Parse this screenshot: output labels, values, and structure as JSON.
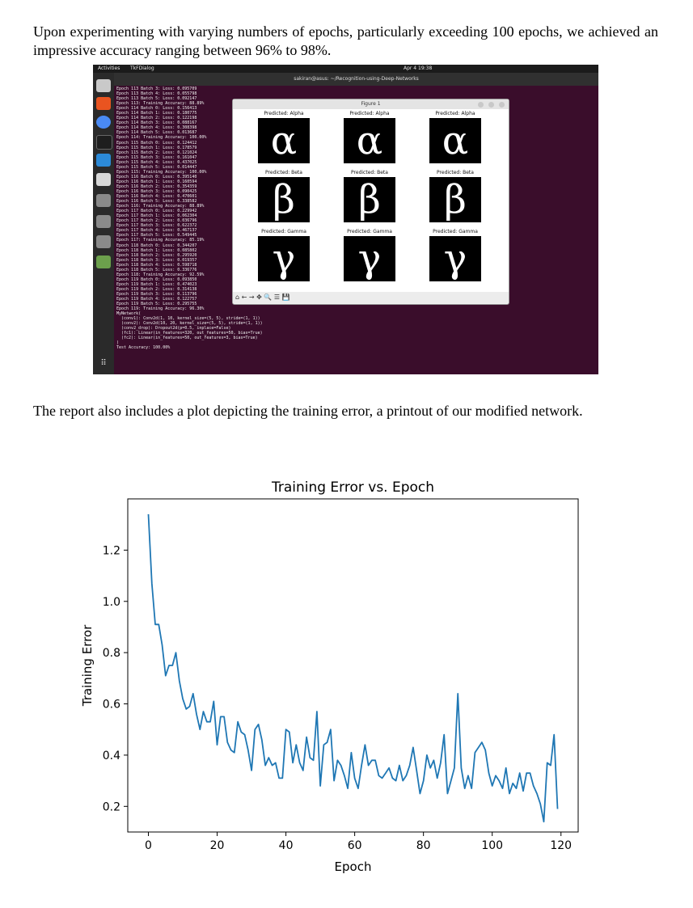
{
  "paragraphs": {
    "intro": "Upon experimenting with varying numbers of epochs, particularly exceeding 100 epochs, we achieved an impressive accuracy ranging between 96% to 98%.",
    "report": "The report also includes a plot depicting the training error, a printout of our modified network."
  },
  "screenshot": {
    "topbar": {
      "activities": "Activities",
      "app": "TkFDialog",
      "clock": "Apr 4  19:38"
    },
    "terminal_title": "sakiran@asus: ~/Recognition-using-Deep-Networks",
    "terminal_lines": [
      "Epoch 113 Batch 3: Loss: 0.095709",
      "Epoch 113 Batch 4: Loss: 0.055798",
      "Epoch 113 Batch 5: Loss: 0.092147",
      "Epoch 113: Training Accuracy: 88.89%",
      "Epoch 114 Batch 0: Loss: 0.156413",
      "Epoch 114 Batch 1: Loss: 0.180775",
      "Epoch 114 Batch 2: Loss: 0.122198",
      "Epoch 114 Batch 3: Loss: 0.088167",
      "Epoch 114 Batch 4: Loss: 0.308398",
      "Epoch 114 Batch 5: Loss: 0.013687",
      "Epoch 114: Training Accuracy: 100.00%",
      "Epoch 115 Batch 0: Loss: 0.124412",
      "Epoch 115 Batch 1: Loss: 0.178579",
      "Epoch 115 Batch 2: Loss: 0.121024",
      "Epoch 115 Batch 3: Loss: 0.161047",
      "Epoch 115 Batch 4: Loss: 0.437025",
      "Epoch 115 Batch 5: Loss: 0.014447",
      "Epoch 115: Training Accuracy: 100.00%",
      "Epoch 116 Batch 0: Loss: 0.395140",
      "Epoch 116 Batch 1: Loss: 0.160594",
      "Epoch 116 Batch 2: Loss: 0.354359",
      "Epoch 116 Batch 3: Loss: 0.090425",
      "Epoch 116 Batch 4: Loss: 0.470601",
      "Epoch 116 Batch 5: Loss: 0.338582",
      "Epoch 116: Training Accuracy: 88.89%",
      "Epoch 117 Batch 0: Loss: 0.229942",
      "Epoch 117 Batch 1: Loss: 0.062304",
      "Epoch 117 Batch 2: Loss: 0.036796",
      "Epoch 117 Batch 3: Loss: 0.622372",
      "Epoch 117 Batch 4: Loss: 0.467137",
      "Epoch 117 Batch 5: Loss: 0.549445",
      "Epoch 117: Training Accuracy: 85.19%",
      "Epoch 118 Batch 0: Loss: 0.344207",
      "Epoch 118 Batch 1: Loss: 0.085802",
      "Epoch 118 Batch 2: Loss: 0.295920",
      "Epoch 118 Batch 3: Loss: 0.019357",
      "Epoch 118 Batch 4: Loss: 0.598718",
      "Epoch 118 Batch 5: Loss: 0.336776",
      "Epoch 118: Training Accuracy: 92.59%",
      "Epoch 119 Batch 0: Loss: 0.093850",
      "Epoch 119 Batch 1: Loss: 0.474023",
      "Epoch 119 Batch 2: Loss: 0.314138",
      "Epoch 119 Batch 3: Loss: 0.113796",
      "Epoch 119 Batch 4: Loss: 0.122757",
      "Epoch 119 Batch 5: Loss: 0.295755",
      "Epoch 119: Training Accuracy: 96.30%",
      "MyNetwork(",
      "  (conv1): Conv2d(1, 10, kernel_size=(5, 5), stride=(1, 1))",
      "  (conv2): Conv2d(10, 20, kernel_size=(5, 5), stride=(1, 1))",
      "  (conv2_drop): Dropout2d(p=0.5, inplace=False)",
      "  (fc1): Linear(in_features=320, out_features=50, bias=True)",
      "  (fc2): Linear(in_features=50, out_features=3, bias=True)",
      ")",
      "Test Accuracy: 100.00%"
    ],
    "figure_window": {
      "title": "Figure 1",
      "predictions": [
        [
          "Predicted: Alpha",
          "Predicted: Alpha",
          "Predicted: Alpha"
        ],
        [
          "Predicted: Beta",
          "Predicted: Beta",
          "Predicted: Beta"
        ],
        [
          "Predicted: Gamma",
          "Predicted: Gamma",
          "Predicted: Gamma"
        ]
      ],
      "glyphs": [
        "α",
        "β",
        "γ"
      ],
      "toolbar": "⌂ ← → ✥ 🔍 ☰ 💾"
    }
  },
  "chart_data": {
    "type": "line",
    "title": "Training Error vs. Epoch",
    "xlabel": "Epoch",
    "ylabel": "Training Error",
    "xlim": [
      -6,
      125
    ],
    "ylim": [
      0.1,
      1.4
    ],
    "xticks": [
      0,
      20,
      40,
      60,
      80,
      100,
      120
    ],
    "yticks": [
      0.2,
      0.4,
      0.6,
      0.8,
      1.0,
      1.2
    ],
    "ytick_labels": [
      "0.2",
      "0.4",
      "0.6",
      "0.8",
      "1.0",
      "1.2"
    ],
    "line_color": "#1f77b4",
    "grid": false,
    "series": [
      {
        "x": [
          0,
          1,
          2,
          3,
          4,
          5,
          6,
          7,
          8,
          9,
          10,
          11,
          12,
          13,
          14,
          15,
          16,
          17,
          18,
          19,
          20,
          21,
          22,
          23,
          24,
          25,
          26,
          27,
          28,
          29,
          30,
          31,
          32,
          33,
          34,
          35,
          36,
          37,
          38,
          39,
          40,
          41,
          42,
          43,
          44,
          45,
          46,
          47,
          48,
          49,
          50,
          51,
          52,
          53,
          54,
          55,
          56,
          57,
          58,
          59,
          60,
          61,
          62,
          63,
          64,
          65,
          66,
          67,
          68,
          69,
          70,
          71,
          72,
          73,
          74,
          75,
          76,
          77,
          78,
          79,
          80,
          81,
          82,
          83,
          84,
          85,
          86,
          87,
          88,
          89,
          90,
          91,
          92,
          93,
          94,
          95,
          96,
          97,
          98,
          99,
          100,
          101,
          102,
          103,
          104,
          105,
          106,
          107,
          108,
          109,
          110,
          111,
          112,
          113,
          114,
          115,
          116,
          117,
          118,
          119
        ],
        "values": [
          1.34,
          1.07,
          0.91,
          0.91,
          0.83,
          0.71,
          0.75,
          0.75,
          0.8,
          0.69,
          0.62,
          0.58,
          0.59,
          0.64,
          0.56,
          0.5,
          0.57,
          0.53,
          0.53,
          0.61,
          0.44,
          0.55,
          0.55,
          0.45,
          0.42,
          0.41,
          0.53,
          0.49,
          0.48,
          0.42,
          0.34,
          0.5,
          0.52,
          0.46,
          0.36,
          0.39,
          0.36,
          0.37,
          0.31,
          0.31,
          0.5,
          0.49,
          0.37,
          0.44,
          0.37,
          0.34,
          0.47,
          0.39,
          0.38,
          0.57,
          0.28,
          0.44,
          0.45,
          0.5,
          0.3,
          0.38,
          0.36,
          0.32,
          0.27,
          0.41,
          0.31,
          0.27,
          0.36,
          0.44,
          0.36,
          0.38,
          0.38,
          0.32,
          0.31,
          0.33,
          0.35,
          0.31,
          0.3,
          0.36,
          0.3,
          0.32,
          0.36,
          0.43,
          0.34,
          0.25,
          0.3,
          0.4,
          0.35,
          0.38,
          0.31,
          0.37,
          0.48,
          0.25,
          0.3,
          0.35,
          0.64,
          0.35,
          0.27,
          0.32,
          0.27,
          0.41,
          0.43,
          0.45,
          0.42,
          0.33,
          0.28,
          0.32,
          0.3,
          0.27,
          0.35,
          0.25,
          0.29,
          0.27,
          0.33,
          0.26,
          0.33,
          0.33,
          0.28,
          0.25,
          0.21,
          0.14,
          0.37,
          0.36,
          0.48,
          0.19
        ]
      }
    ]
  }
}
